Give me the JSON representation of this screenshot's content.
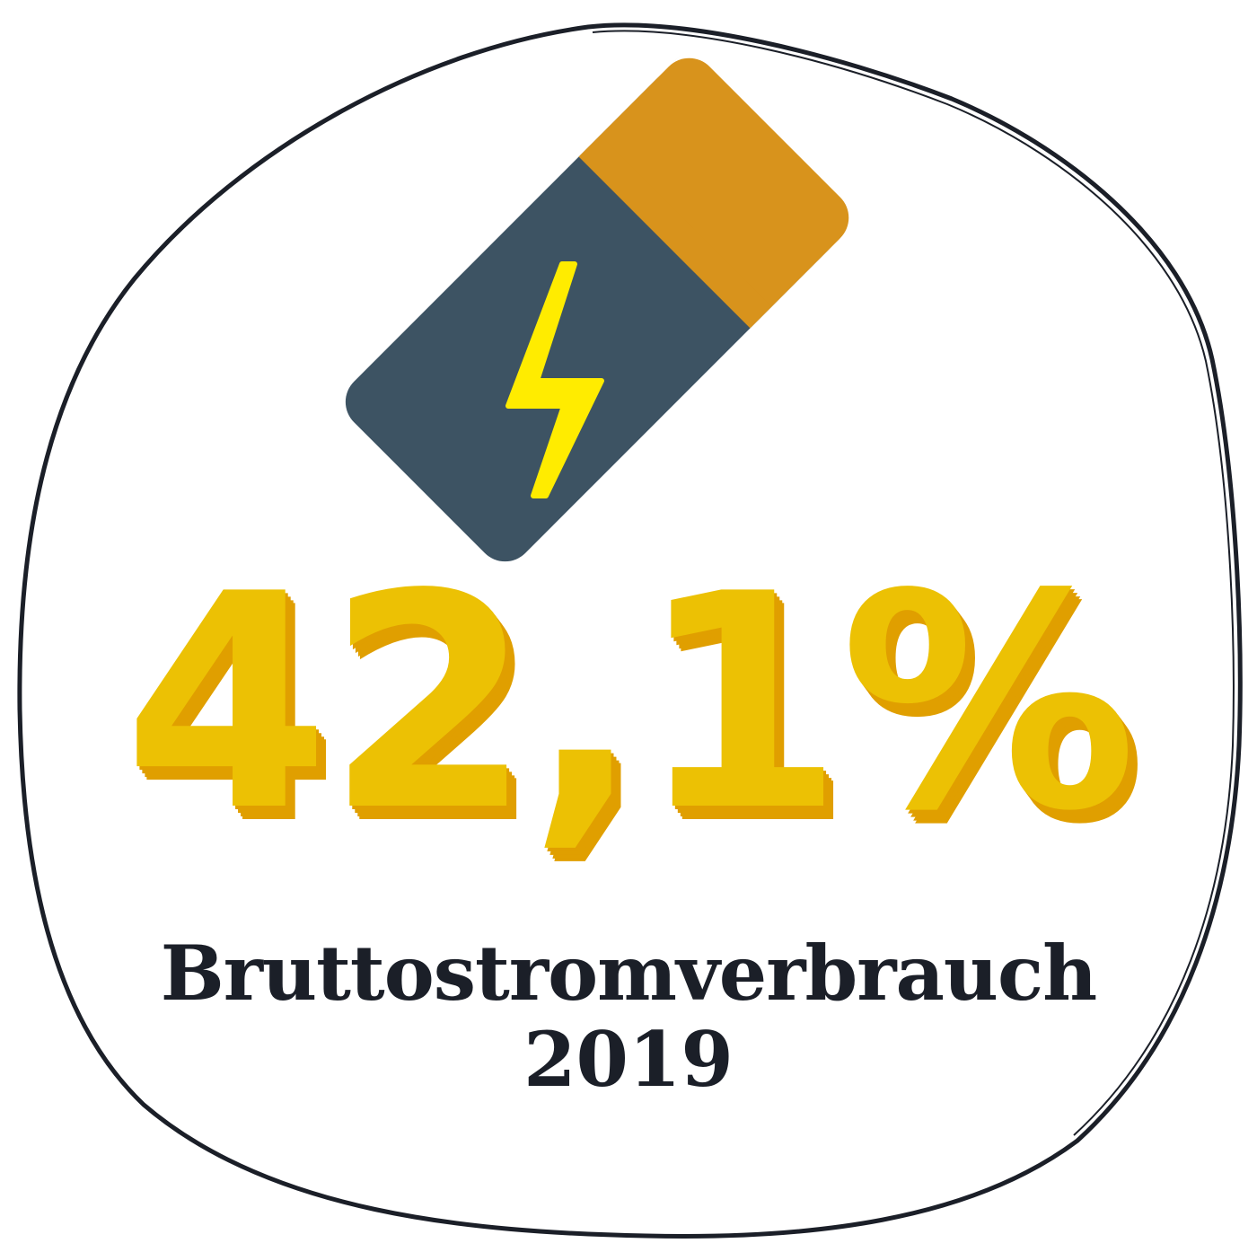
{
  "badge": {
    "value": "42,1%",
    "label": "Bruttostromverbrauch",
    "year": "2019",
    "icon": "battery-charging-icon"
  },
  "colors": {
    "background": "#ffffff",
    "outline": "#1b1f28",
    "battery_body": "#3d5363",
    "battery_cap": "#d8931c",
    "bolt": "#ffec00",
    "value_fill": "#ecc104",
    "value_shadow": "#e09f00",
    "text": "#1b1f28"
  }
}
